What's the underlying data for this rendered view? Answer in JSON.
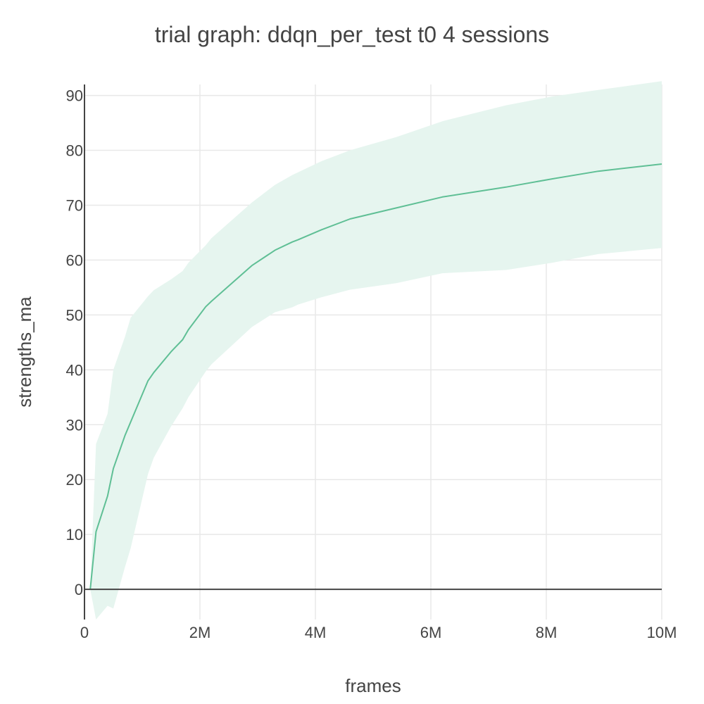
{
  "chart_data": {
    "type": "line",
    "title": "trial graph: ddqn_per_test t0 4 sessions",
    "xlabel": "frames",
    "ylabel": "strengths_ma",
    "xlim": [
      0,
      10000000
    ],
    "ylim": [
      -5.5,
      92
    ],
    "x_ticks": [
      {
        "value": 0,
        "label": "0"
      },
      {
        "value": 2000000,
        "label": "2M"
      },
      {
        "value": 4000000,
        "label": "4M"
      },
      {
        "value": 6000000,
        "label": "6M"
      },
      {
        "value": 8000000,
        "label": "8M"
      },
      {
        "value": 10000000,
        "label": "10M"
      }
    ],
    "y_ticks": [
      {
        "value": 0,
        "label": "0"
      },
      {
        "value": 10,
        "label": "10"
      },
      {
        "value": 20,
        "label": "20"
      },
      {
        "value": 30,
        "label": "30"
      },
      {
        "value": 40,
        "label": "40"
      },
      {
        "value": 50,
        "label": "50"
      },
      {
        "value": 60,
        "label": "60"
      },
      {
        "value": 70,
        "label": "70"
      },
      {
        "value": 80,
        "label": "80"
      },
      {
        "value": 90,
        "label": "90"
      }
    ],
    "grid": true,
    "legend": "none",
    "colors": {
      "line": "#5fbf95",
      "band": "#e6f5ef",
      "text": "#444444",
      "grid": "#e8e8e8"
    },
    "series": [
      {
        "x": [
          100000,
          200000,
          400000,
          500000,
          700000,
          800000,
          1100000,
          1200000,
          1500000,
          1700000,
          1800000,
          2100000,
          2200000,
          2900000,
          3300000,
          3600000,
          3700000,
          4100000,
          4600000,
          5400000,
          6200000,
          7300000,
          8100000,
          8900000,
          10000000
        ],
        "y": [
          0,
          10.5,
          17,
          22,
          28,
          30.5,
          38,
          39.5,
          43.3,
          45.5,
          47.3,
          51.5,
          52.5,
          59,
          61.8,
          63.3,
          63.7,
          65.5,
          67.5,
          69.5,
          71.5,
          73.3,
          74.8,
          76.2,
          77.5
        ],
        "upper": [
          0,
          26.5,
          32,
          40,
          46,
          49.5,
          53.4,
          54.5,
          56.5,
          58,
          59.5,
          62.7,
          64,
          70.5,
          73.7,
          75.5,
          76,
          78,
          80,
          82.4,
          85.3,
          88.2,
          89.8,
          91,
          92.6
        ],
        "lower": [
          0,
          -5.5,
          -3,
          -3.5,
          4,
          7.5,
          21,
          24,
          29.7,
          33,
          35,
          39.7,
          41,
          47.8,
          50.5,
          51.4,
          51.9,
          53.2,
          54.6,
          55.8,
          57.6,
          58.2,
          59.5,
          61.1,
          62.2
        ]
      }
    ]
  }
}
